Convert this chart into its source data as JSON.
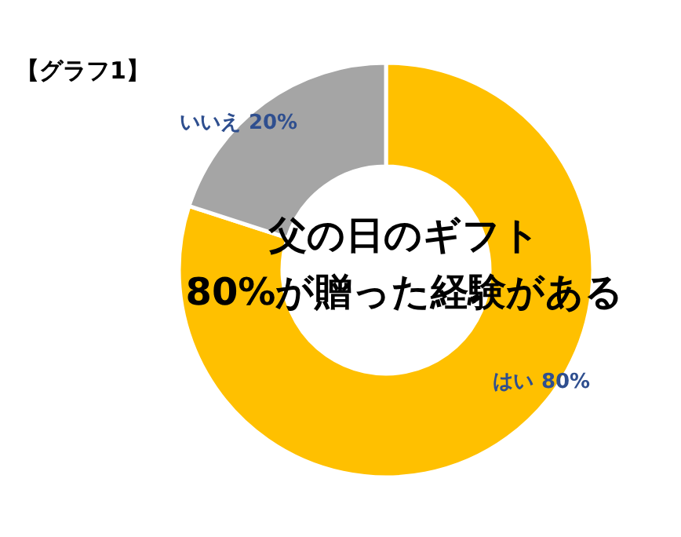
{
  "chart_data": {
    "type": "donut",
    "title": "【グラフ1】",
    "categories": [
      "はい",
      "いいえ"
    ],
    "values": [
      80,
      20
    ],
    "colors": [
      "#ffc000",
      "#a5a5a5"
    ],
    "value_labels": [
      "80%",
      "20%"
    ],
    "annotations": [
      "父の日のギフト\n80%が贈った経験がある"
    ]
  }
}
